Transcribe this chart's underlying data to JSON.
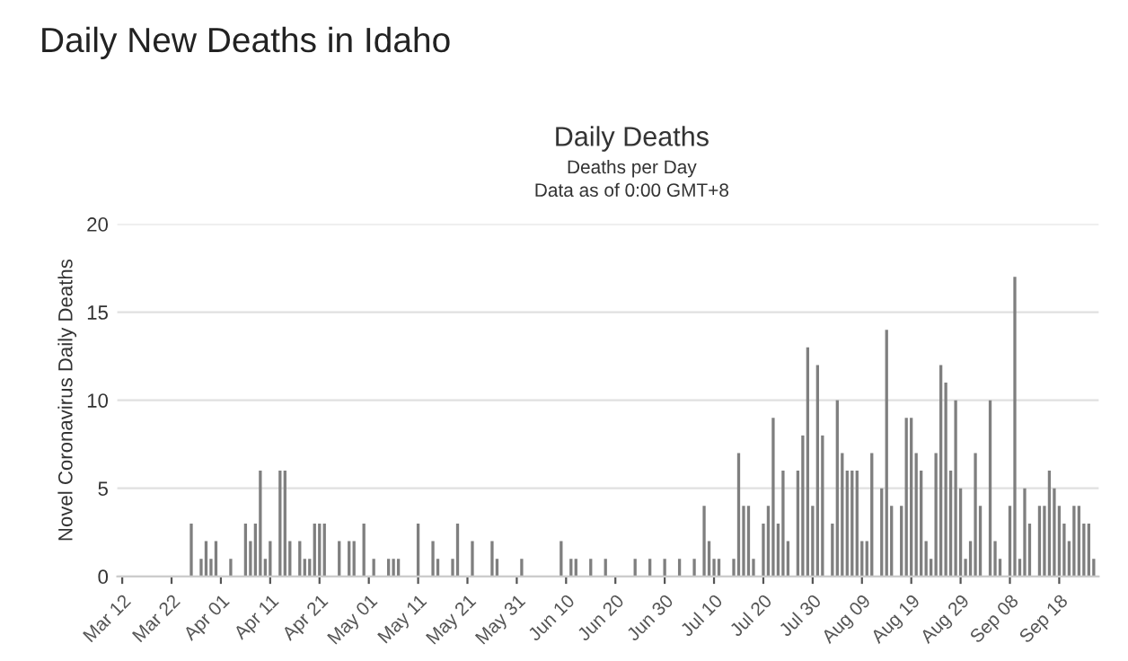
{
  "chart_data": {
    "type": "bar",
    "title": "Daily New Deaths in Idaho",
    "subtitle": "Daily Deaths",
    "annotations": [
      "Deaths per Day",
      "Data as of 0:00 GMT+8"
    ],
    "ylabel": "Novel Coronavirus Daily Deaths",
    "categories": [
      "Mar 12",
      null,
      null,
      null,
      null,
      null,
      null,
      null,
      null,
      null,
      "Mar 22",
      null,
      null,
      null,
      null,
      null,
      null,
      null,
      null,
      null,
      "Apr 01",
      null,
      null,
      null,
      null,
      null,
      null,
      null,
      null,
      null,
      "Apr 11",
      null,
      null,
      null,
      null,
      null,
      null,
      null,
      null,
      null,
      "Apr 21",
      null,
      null,
      null,
      null,
      null,
      null,
      null,
      null,
      null,
      "May 01",
      null,
      null,
      null,
      null,
      null,
      null,
      null,
      null,
      null,
      "May 11",
      null,
      null,
      null,
      null,
      null,
      null,
      null,
      null,
      null,
      "May 21",
      null,
      null,
      null,
      null,
      null,
      null,
      null,
      null,
      null,
      "May 31",
      null,
      null,
      null,
      null,
      null,
      null,
      null,
      null,
      null,
      "Jun 10",
      null,
      null,
      null,
      null,
      null,
      null,
      null,
      null,
      null,
      "Jun 20",
      null,
      null,
      null,
      null,
      null,
      null,
      null,
      null,
      null,
      "Jun 30",
      null,
      null,
      null,
      null,
      null,
      null,
      null,
      null,
      null,
      "Jul 10",
      null,
      null,
      null,
      null,
      null,
      null,
      null,
      null,
      null,
      "Jul 20",
      null,
      null,
      null,
      null,
      null,
      null,
      null,
      null,
      null,
      "Jul 30",
      null,
      null,
      null,
      null,
      null,
      null,
      null,
      null,
      null,
      "Aug 09",
      null,
      null,
      null,
      null,
      null,
      null,
      null,
      null,
      null,
      "Aug 19",
      null,
      null,
      null,
      null,
      null,
      null,
      null,
      null,
      null,
      "Aug 29",
      null,
      null,
      null,
      null,
      null,
      null,
      null,
      null,
      null,
      "Sep 08",
      null,
      null,
      null,
      null,
      null,
      null,
      null,
      null,
      null,
      "Sep 18",
      null,
      null,
      null,
      null,
      null,
      null,
      null
    ],
    "values": [
      0,
      0,
      0,
      0,
      0,
      0,
      0,
      0,
      0,
      0,
      0,
      0,
      0,
      0,
      3,
      0,
      1,
      2,
      1,
      2,
      0,
      0,
      1,
      0,
      0,
      3,
      2,
      3,
      6,
      1,
      2,
      0,
      6,
      6,
      2,
      0,
      2,
      1,
      1,
      3,
      3,
      3,
      0,
      0,
      2,
      0,
      2,
      2,
      0,
      3,
      0,
      1,
      0,
      0,
      1,
      1,
      1,
      0,
      0,
      0,
      3,
      0,
      0,
      2,
      1,
      0,
      0,
      1,
      3,
      0,
      0,
      2,
      0,
      0,
      0,
      2,
      1,
      0,
      0,
      0,
      0,
      1,
      0,
      0,
      0,
      0,
      0,
      0,
      0,
      2,
      0,
      1,
      1,
      0,
      0,
      1,
      0,
      0,
      1,
      0,
      0,
      0,
      0,
      0,
      1,
      0,
      0,
      1,
      0,
      0,
      1,
      0,
      0,
      1,
      0,
      0,
      1,
      0,
      4,
      2,
      1,
      1,
      0,
      0,
      1,
      7,
      4,
      4,
      1,
      0,
      3,
      4,
      9,
      3,
      6,
      2,
      0,
      6,
      8,
      13,
      4,
      12,
      8,
      0,
      3,
      10,
      7,
      6,
      6,
      6,
      2,
      2,
      7,
      0,
      5,
      14,
      4,
      0,
      4,
      9,
      9,
      7,
      6,
      2,
      1,
      7,
      12,
      11,
      6,
      10,
      5,
      1,
      2,
      7,
      4,
      0,
      10,
      2,
      1,
      0,
      4,
      17,
      1,
      5,
      3,
      0,
      4,
      4,
      6,
      5,
      4,
      3,
      2,
      4,
      4,
      3,
      3,
      1
    ],
    "color": "#7f7f7f",
    "ylim": [
      0,
      20
    ],
    "yticks": [
      0,
      5,
      10,
      15,
      20
    ],
    "grid": "y"
  }
}
